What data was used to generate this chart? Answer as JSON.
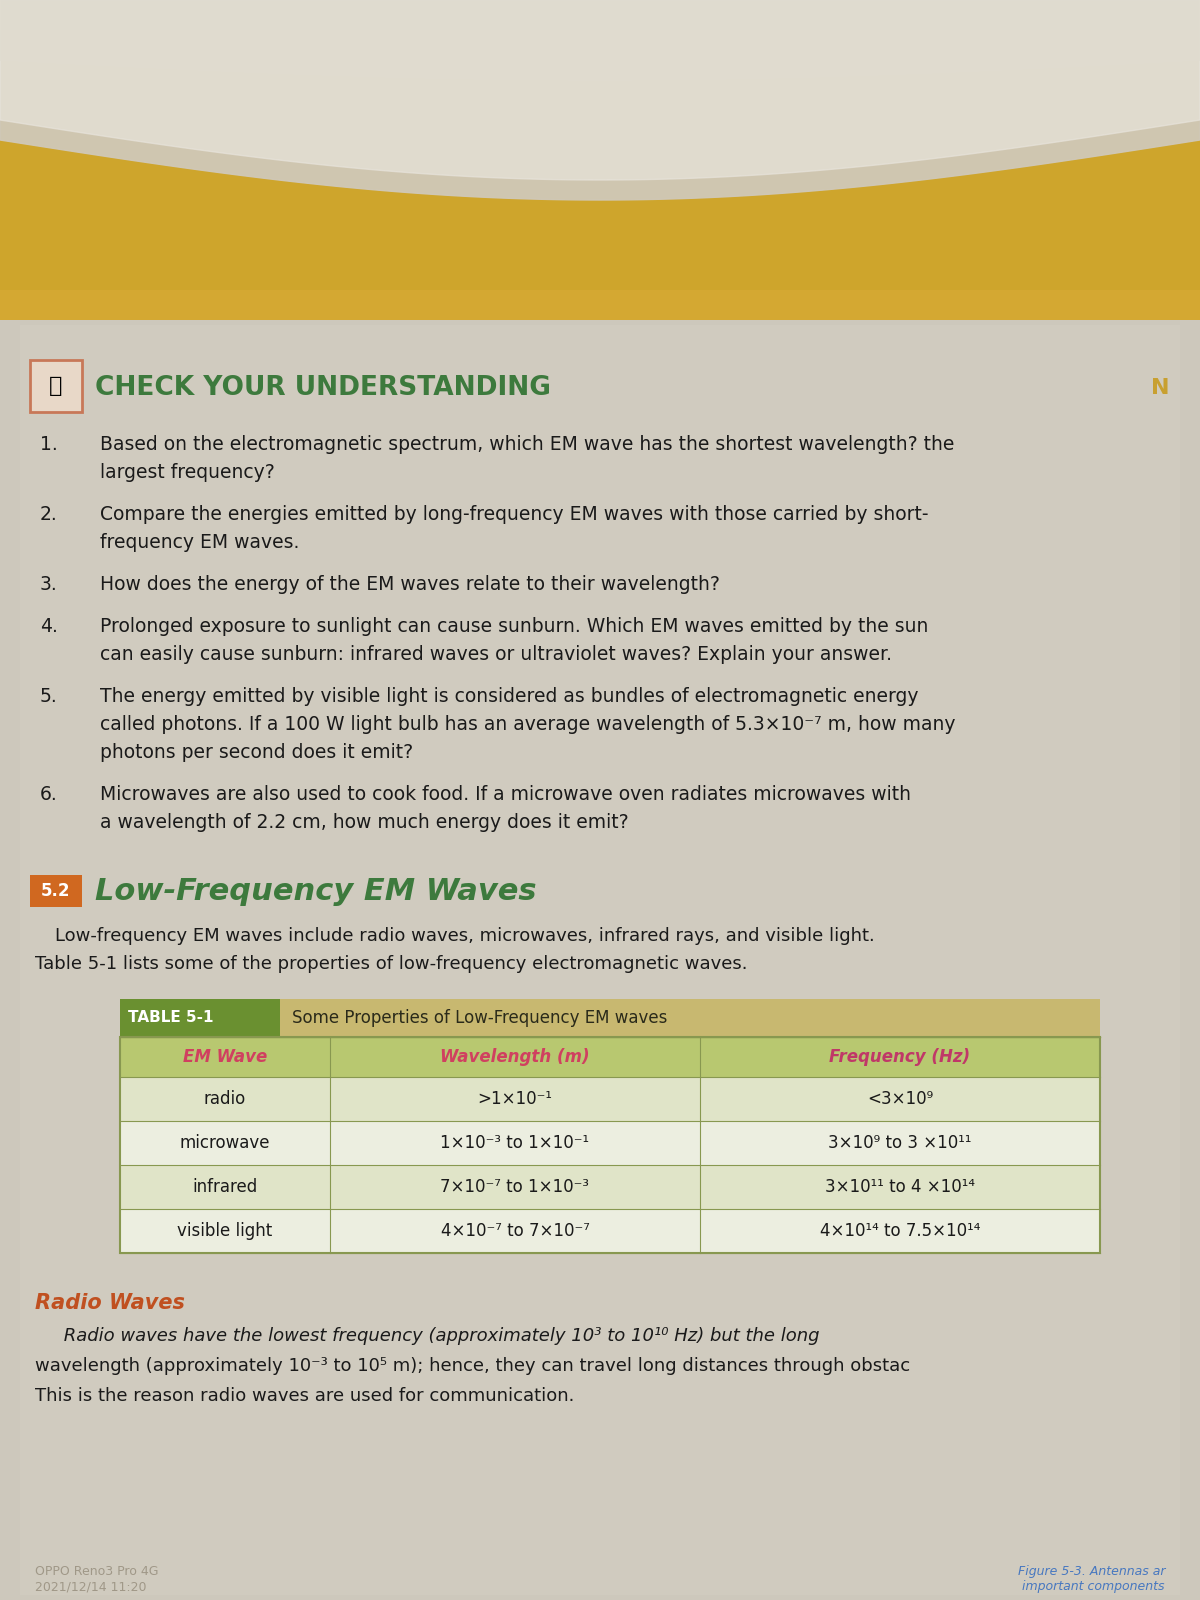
{
  "page_bg": "#cdc8bc",
  "top_photo_bg": "#c8c0b0",
  "banner_color": "#d4a832",
  "stripe_color": "#d4a832",
  "check_box_border": "#c87858",
  "check_title_color": "#3d7a3d",
  "section_title_color": "#3d7a3d",
  "section_number_bg": "#d06820",
  "section_header_bg": "#6a9030",
  "table_title_bg": "#6a9030",
  "table_subtitle_bg": "#c8b870",
  "table_header_bg": "#b8c870",
  "table_border": "#889850",
  "table_row1_bg": "#e0e4c8",
  "table_row2_bg": "#eceee0",
  "header_em_color": "#d04060",
  "header_wl_color": "#d04060",
  "header_freq_color": "#c03868",
  "radio_title_color": "#c05020",
  "text_color": "#1a1a1a",
  "footer_color": "#a09888",
  "figure_caption_color": "#4878c0",
  "title_text": "Check Your Understanding",
  "questions": [
    [
      "Based on the electromagnetic spectrum, which EM wave has the shortest wavelength? the",
      "largest frequency?"
    ],
    [
      "Compare the energies emitted by long-frequency EM waves with those carried by short-",
      "frequency EM waves."
    ],
    [
      "How does the energy of the EM waves relate to their wavelength?"
    ],
    [
      "Prolonged exposure to sunlight can cause sunburn. Which EM waves emitted by the sun",
      "can easily cause sunburn: infrared waves or ultraviolet waves? Explain your answer."
    ],
    [
      "The energy emitted by visible light is considered as bundles of electromagnetic energy",
      "called photons. If a 100 W light bulb has an average wavelength of 5.3×10⁻⁷ m, how many",
      "photons per second does it emit?"
    ],
    [
      "Microwaves are also used to cook food. If a microwave oven radiates microwaves with",
      "a wavelength of 2.2 cm, how much energy does it emit?"
    ]
  ],
  "section_number": "5.2",
  "section_title": "Low-Frequency EM Waves",
  "body_line1": "Low-frequency EM waves include radio waves, microwaves, infrared rays, and visible light.",
  "body_line2": "Table 5-1 lists some of the properties of low-frequency electromagnetic waves.",
  "table_title": "TABLE 5-1",
  "table_subtitle": "Some Properties of Low-Frequency EM waves",
  "table_header": [
    "EM Wave",
    "Wavelength (m)",
    "Frequency (Hz)"
  ],
  "table_data": [
    [
      "radio",
      ">1×10⁻¹",
      "<3×10⁹"
    ],
    [
      "microwave",
      "1×10⁻³ to 1×10⁻¹",
      "3×10⁹ to 3 ×10¹¹"
    ],
    [
      "infrared",
      "7×10⁻⁷ to 1×10⁻³",
      "3×10¹¹ to 4 ×10¹⁴"
    ],
    [
      "visible light",
      "4×10⁻⁷ to 7×10⁻⁷",
      "4×10¹⁴ to 7.5×10¹⁴"
    ]
  ],
  "radio_title": "Radio Waves",
  "radio_line1": "     Radio waves have the lowest frequency (approximately 10³ to 10¹⁰ Hz) but the long",
  "radio_line2": "wavelength (approximately 10⁻³ to 10⁵ m); hence, they can travel long distances through obstac",
  "radio_line3": "This is the reason radio waves are used for communication.",
  "footer1": "OPPO Reno3 Pro 4G",
  "footer2": "2021/12/14 11:20",
  "fig_caption1": "Figure 5-3. Antennas ar",
  "fig_caption2": "important components"
}
